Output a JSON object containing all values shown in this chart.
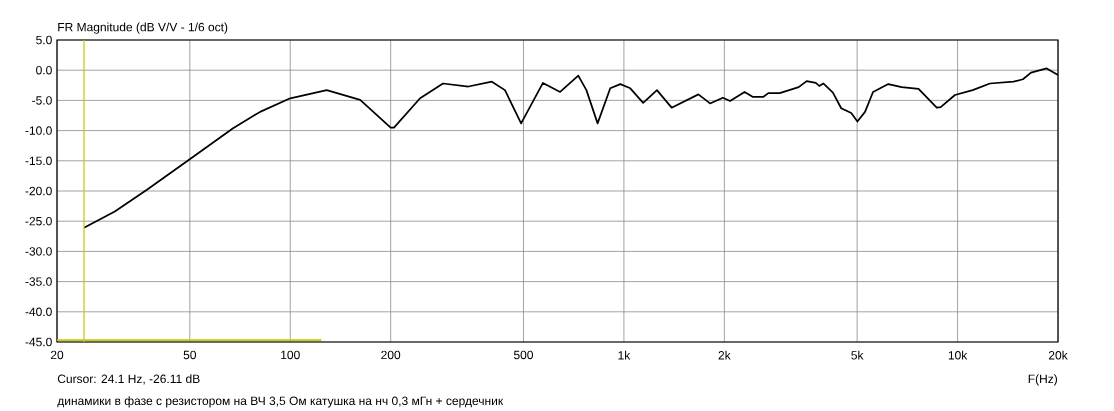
{
  "chart_data": {
    "type": "line",
    "title": "FR Magnitude (dB V/V - 1/6 oct)",
    "xlabel": "F(Hz)",
    "annotations": [
      "Cursor: 24.1 Hz, -26.11 dB",
      "динамики в фазе с резистором на ВЧ 3,5 Ом катушка на нч 0,3 мГн + сердечник"
    ],
    "log": "x",
    "grid": true,
    "marker": "none",
    "line_style": "solid",
    "xlim": [
      20,
      20000
    ],
    "ylim": [
      -45,
      5
    ],
    "xticks": [
      20,
      50,
      100,
      200,
      500,
      {
        "value": 1000,
        "label": "1k"
      },
      {
        "value": 2000,
        "label": "2k"
      },
      {
        "value": 5000,
        "label": "5k"
      },
      {
        "value": 10000,
        "label": "10k"
      },
      {
        "value": 20000,
        "label": "20k"
      }
    ],
    "yticks": [
      {
        "value": -45,
        "label": "-45.0"
      },
      {
        "value": -40,
        "label": "-40.0"
      },
      {
        "value": -35,
        "label": "-35.0"
      },
      {
        "value": -30,
        "label": "-30.0"
      },
      {
        "value": -25,
        "label": "-25.0"
      },
      {
        "value": -20,
        "label": "-20.0"
      },
      {
        "value": -15,
        "label": "-15.0"
      },
      {
        "value": -10,
        "label": "-10.0"
      },
      {
        "value": -5,
        "label": "-5.0"
      },
      {
        "value": 0,
        "label": "0.0"
      },
      {
        "value": 5,
        "label": "5.0"
      }
    ],
    "ref_lines": [
      {
        "axis": "x",
        "value": 24.1,
        "color": "#c8c800"
      }
    ],
    "series": [
      {
        "color": "#000000",
        "x": [
          24.1,
          29.8,
          37.2,
          49.5,
          67.4,
          81.2,
          100,
          128.6,
          162,
          200,
          204.6,
          245,
          287,
          342,
          402,
          440,
          492,
          572,
          644,
          730,
          772,
          834,
          910,
          976,
          1045,
          1142,
          1256,
          1390,
          1672,
          1812,
          1980,
          2080,
          2300,
          2430,
          2620,
          2710,
          2930,
          3340,
          3530,
          3760,
          3850,
          3960,
          4230,
          4480,
          4800,
          5010,
          5280,
          5580,
          6200,
          6800,
          7640,
          8660,
          8900,
          9820,
          11100,
          12500,
          14700,
          15700,
          16600,
          18500,
          20000
        ],
        "values": [
          -26.1,
          -23.4,
          -19.8,
          -14.9,
          -9.6,
          -6.9,
          -4.65,
          -3.3,
          -4.9,
          -9.5,
          -9.5,
          -4.65,
          -2.2,
          -2.7,
          -1.9,
          -3.3,
          -8.8,
          -2.1,
          -3.6,
          -0.9,
          -3.3,
          -8.8,
          -3.0,
          -2.3,
          -3.0,
          -5.4,
          -3.3,
          -6.2,
          -4.0,
          -5.5,
          -4.55,
          -5.1,
          -3.6,
          -4.4,
          -4.4,
          -3.8,
          -3.8,
          -2.8,
          -1.8,
          -2.1,
          -2.6,
          -2.2,
          -3.7,
          -6.3,
          -7.1,
          -8.5,
          -6.9,
          -3.6,
          -2.3,
          -2.8,
          -3.1,
          -6.2,
          -6.1,
          -4.1,
          -3.3,
          -2.2,
          -1.9,
          -1.5,
          -0.4,
          0.3,
          -0.8
        ]
      },
      {
        "color": "#c8c800",
        "x": [
          20,
          124
        ],
        "values": [
          -44.7,
          -44.7
        ]
      }
    ]
  }
}
